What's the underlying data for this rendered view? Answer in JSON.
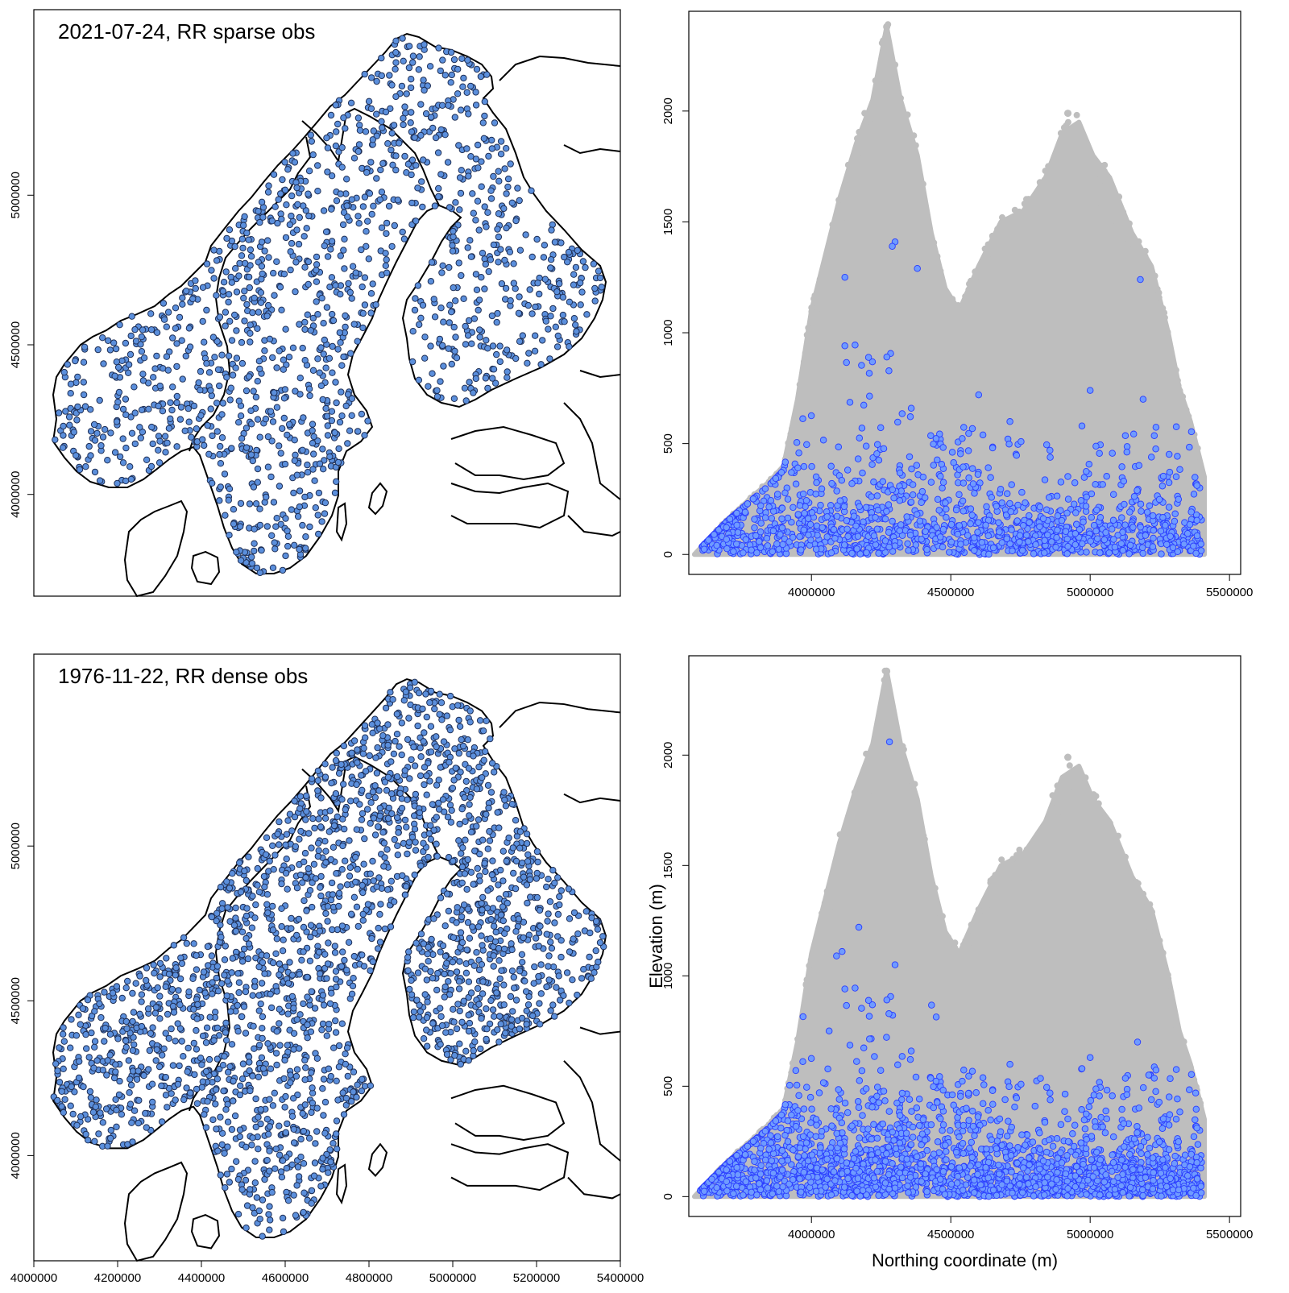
{
  "figure": {
    "colors": {
      "station_fill": "#5b8fdc",
      "station_stroke": "#1f2f55",
      "grid_cloud": "#bebebe",
      "obs_fill": "#6f9bff",
      "obs_stroke": "#2a3cff",
      "coast": "#000000"
    }
  },
  "chart_data": [
    {
      "id": "map_sparse",
      "type": "scatter",
      "subtype": "station-map",
      "title": "2021-07-24, RR sparse obs",
      "xlabel": "",
      "ylabel": "",
      "xlim": [
        4000000,
        5400000
      ],
      "ylim": [
        3660000,
        5620000
      ],
      "xticks": [],
      "yticks": [
        "4000000",
        "4500000",
        "5000000"
      ],
      "station_count_estimate": 1400,
      "description_regions": [
        "Norway",
        "Sweden",
        "Finland"
      ]
    },
    {
      "id": "map_dense",
      "type": "scatter",
      "subtype": "station-map",
      "title": "1976-11-22, RR dense obs",
      "xlabel": "",
      "ylabel": "",
      "xlim": [
        4000000,
        5400000
      ],
      "ylim": [
        3660000,
        5620000
      ],
      "xticks": [
        "4000000",
        "4200000",
        "4400000",
        "4600000",
        "4800000",
        "5000000",
        "5200000",
        "5400000"
      ],
      "yticks": [
        "4000000",
        "4500000",
        "5000000"
      ],
      "station_count_estimate": 2300,
      "description_regions": [
        "Norway",
        "Sweden",
        "Finland"
      ]
    },
    {
      "id": "elev_sparse",
      "type": "scatter",
      "title": "",
      "xlabel": "",
      "ylabel": "",
      "xlim": [
        3560000,
        5540000
      ],
      "ylim": [
        -90,
        2450
      ],
      "xticks": [
        "4000000",
        "4500000",
        "5000000",
        "5500000"
      ],
      "yticks": [
        "0",
        "500",
        "1000",
        "1500",
        "2000"
      ],
      "series": [
        {
          "role": "grid",
          "peaks": [
            {
              "x": 4270000,
              "y": 2380
            },
            {
              "x": 4920000,
              "y": 1990
            }
          ],
          "envelope": [
            [
              3580000,
              0
            ],
            [
              3700000,
              160
            ],
            [
              3850000,
              330
            ],
            [
              3900000,
              400
            ],
            [
              3950000,
              700
            ],
            [
              4000000,
              1100
            ],
            [
              4050000,
              1350
            ],
            [
              4100000,
              1600
            ],
            [
              4160000,
              1850
            ],
            [
              4220000,
              2050
            ],
            [
              4270000,
              2380
            ],
            [
              4320000,
              2050
            ],
            [
              4380000,
              1800
            ],
            [
              4430000,
              1450
            ],
            [
              4480000,
              1200
            ],
            [
              4530000,
              1100
            ],
            [
              4600000,
              1300
            ],
            [
              4680000,
              1500
            ],
            [
              4760000,
              1550
            ],
            [
              4840000,
              1700
            ],
            [
              4900000,
              1900
            ],
            [
              4960000,
              1950
            ],
            [
              5010000,
              1800
            ],
            [
              5070000,
              1700
            ],
            [
              5150000,
              1450
            ],
            [
              5220000,
              1300
            ],
            [
              5280000,
              1000
            ],
            [
              5320000,
              750
            ],
            [
              5360000,
              600
            ],
            [
              5410000,
              350
            ],
            [
              5410000,
              0
            ]
          ]
        },
        {
          "role": "observations",
          "count_estimate": 1400,
          "outliers": [
            [
              4300000,
              1410
            ],
            [
              4290000,
              1390
            ],
            [
              4380000,
              1290
            ],
            [
              4120000,
              1250
            ],
            [
              5180000,
              1240
            ],
            [
              5190000,
              700
            ],
            [
              4600000,
              720
            ],
            [
              5000000,
              740
            ]
          ]
        }
      ]
    },
    {
      "id": "elev_dense",
      "type": "scatter",
      "title": "",
      "xlabel": "Northing coordinate (m)",
      "ylabel": "Elevation (m)",
      "xlim": [
        3560000,
        5540000
      ],
      "ylim": [
        -90,
        2450
      ],
      "xticks": [
        "4000000",
        "4500000",
        "5000000",
        "5500000"
      ],
      "yticks": [
        "0",
        "500",
        "1000",
        "1500",
        "2000"
      ],
      "series": [
        {
          "role": "grid",
          "peaks": [
            {
              "x": 4270000,
              "y": 2380
            },
            {
              "x": 4920000,
              "y": 1990
            }
          ],
          "envelope": [
            [
              3580000,
              0
            ],
            [
              3700000,
              160
            ],
            [
              3850000,
              330
            ],
            [
              3900000,
              400
            ],
            [
              3950000,
              700
            ],
            [
              4000000,
              1100
            ],
            [
              4050000,
              1350
            ],
            [
              4100000,
              1600
            ],
            [
              4160000,
              1850
            ],
            [
              4220000,
              2050
            ],
            [
              4270000,
              2380
            ],
            [
              4320000,
              2050
            ],
            [
              4380000,
              1800
            ],
            [
              4430000,
              1450
            ],
            [
              4480000,
              1200
            ],
            [
              4530000,
              1100
            ],
            [
              4600000,
              1300
            ],
            [
              4680000,
              1500
            ],
            [
              4760000,
              1550
            ],
            [
              4840000,
              1700
            ],
            [
              4900000,
              1900
            ],
            [
              4960000,
              1950
            ],
            [
              5010000,
              1800
            ],
            [
              5070000,
              1700
            ],
            [
              5150000,
              1450
            ],
            [
              5220000,
              1300
            ],
            [
              5280000,
              1000
            ],
            [
              5320000,
              750
            ],
            [
              5360000,
              600
            ],
            [
              5410000,
              350
            ],
            [
              5410000,
              0
            ]
          ]
        },
        {
          "role": "observations",
          "count_estimate": 2300,
          "outliers": [
            [
              4280000,
              2060
            ],
            [
              4170000,
              1220
            ],
            [
              4110000,
              1110
            ],
            [
              4090000,
              1090
            ],
            [
              4300000,
              1050
            ],
            [
              5170000,
              700
            ],
            [
              5000000,
              630
            ]
          ]
        }
      ]
    }
  ]
}
